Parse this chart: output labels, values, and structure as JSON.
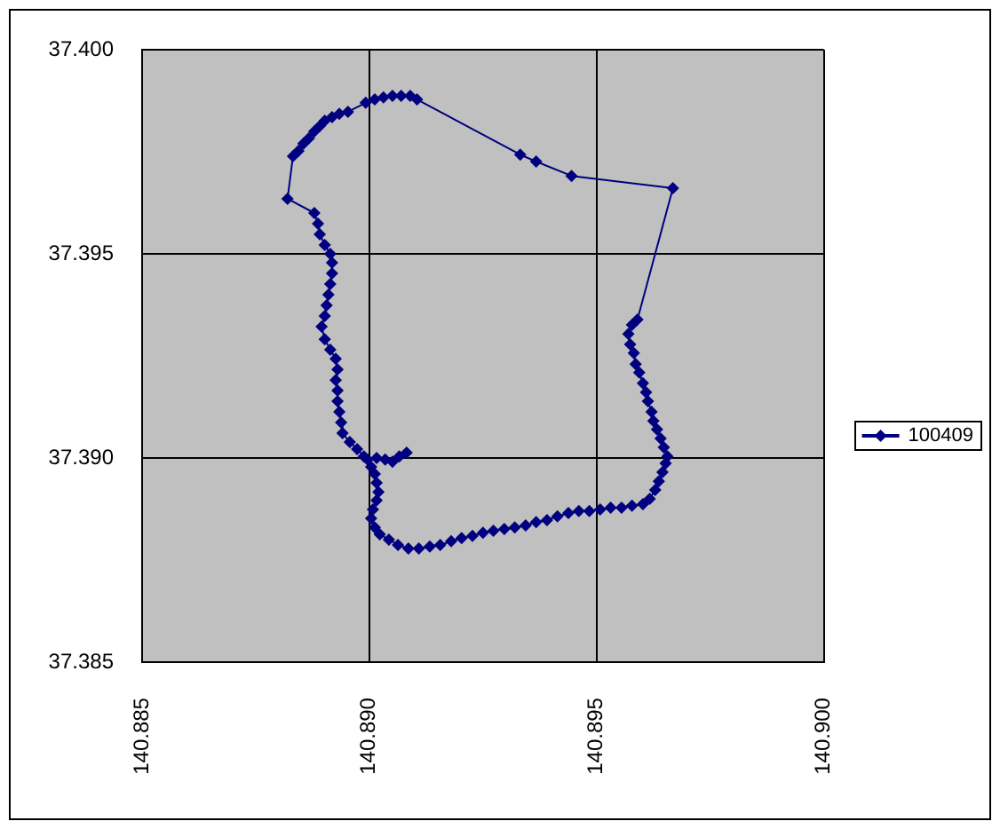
{
  "chart_data": {
    "type": "line",
    "x": [
      140.89082,
      140.89066,
      140.89051,
      140.89035,
      140.89016,
      140.88996,
      140.89004,
      140.89012,
      140.89016,
      140.8902,
      140.89016,
      140.89008,
      140.89004,
      140.89012,
      140.89023,
      140.89043,
      140.89063,
      140.89086,
      140.89109,
      140.89133,
      140.89156,
      140.8918,
      140.89203,
      140.89227,
      140.8925,
      140.89273,
      140.89297,
      140.8932,
      140.89344,
      140.89367,
      140.89391,
      140.89414,
      140.89438,
      140.89461,
      140.89484,
      140.89508,
      140.89531,
      140.89555,
      140.89578,
      140.89602,
      140.89617,
      140.89629,
      140.89637,
      140.89645,
      140.89652,
      140.89656,
      140.89648,
      140.89641,
      140.89633,
      140.89625,
      140.89621,
      140.89613,
      140.89609,
      140.89602,
      140.89594,
      140.89586,
      140.89582,
      140.89574,
      140.8957,
      140.89578,
      140.8959,
      140.89668,
      140.89445,
      140.89367,
      140.89332,
      140.89105,
      140.8909,
      140.8907,
      140.89051,
      140.89031,
      140.89012,
      140.88992,
      140.88953,
      140.88934,
      140.88918,
      140.88902,
      140.88891,
      140.88879,
      140.88867,
      140.88855,
      140.88844,
      140.88832,
      140.8882,
      140.88879,
      140.88887,
      140.88891,
      140.88902,
      140.88914,
      140.88918,
      140.88918,
      140.88914,
      140.8891,
      140.88906,
      140.88902,
      140.88895,
      140.88902,
      140.88914,
      140.88926,
      140.8893,
      140.88926,
      140.8893,
      140.8893,
      140.88934,
      140.88938,
      140.88941,
      140.88957,
      140.88973,
      140.88988
    ],
    "series": [
      {
        "name": "100409",
        "color": "#000080",
        "values": [
          37.39013,
          37.39004,
          37.38991,
          37.38996,
          37.39,
          37.38996,
          37.38978,
          37.38961,
          37.38939,
          37.38917,
          37.38896,
          37.38874,
          37.38852,
          37.3883,
          37.38813,
          37.388,
          37.38787,
          37.38778,
          37.38778,
          37.38783,
          37.38787,
          37.38796,
          37.38804,
          37.38809,
          37.38817,
          37.38822,
          37.38826,
          37.3883,
          37.38835,
          37.38843,
          37.38848,
          37.38857,
          37.38865,
          37.3887,
          37.3887,
          37.38874,
          37.38878,
          37.38878,
          37.38883,
          37.38887,
          37.389,
          37.38922,
          37.38943,
          37.38965,
          37.38987,
          37.39004,
          37.39026,
          37.39048,
          37.3907,
          37.39091,
          37.39113,
          37.39139,
          37.39161,
          37.39183,
          37.39209,
          37.3923,
          37.39257,
          37.39278,
          37.39304,
          37.39326,
          37.39339,
          37.39661,
          37.39691,
          37.39726,
          37.39743,
          37.39878,
          37.39887,
          37.39887,
          37.39887,
          37.39883,
          37.39878,
          37.3987,
          37.39848,
          37.39843,
          37.39835,
          37.39826,
          37.39813,
          37.398,
          37.39783,
          37.3977,
          37.39752,
          37.39739,
          37.39635,
          37.396,
          37.39574,
          37.39548,
          37.39522,
          37.395,
          37.39478,
          37.39452,
          37.39426,
          37.394,
          37.39374,
          37.39348,
          37.39322,
          37.39291,
          37.39265,
          37.39243,
          37.39217,
          37.39191,
          37.39165,
          37.39139,
          37.39113,
          37.39087,
          37.39061,
          37.39039,
          37.39022,
          37.39004
        ]
      }
    ],
    "xlim": [
      140.885,
      140.9
    ],
    "ylim": [
      37.385,
      37.4
    ],
    "xticks": [
      140.885,
      {
        "value": 140.89,
        "label": "140.890"
      },
      140.895,
      {
        "value": 140.9,
        "label": "140.900"
      }
    ],
    "yticks": [
      37.385,
      {
        "value": 37.39,
        "label": "37.390"
      },
      37.395,
      {
        "value": 37.4,
        "label": "37.400"
      }
    ],
    "grid": true,
    "legend": "right",
    "marker": "diamond",
    "line_style": "solid"
  }
}
